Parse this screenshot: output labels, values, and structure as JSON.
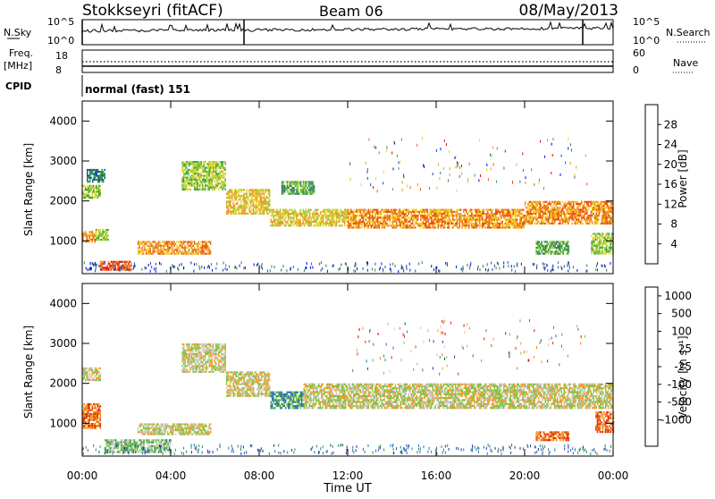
{
  "header": {
    "station": "Stokkseyri (fitACF)",
    "beam": "Beam 06",
    "date": "08/May/2013"
  },
  "top_panels": {
    "nsky_label": "N.Sky",
    "nsky_ticks": [
      "10^5",
      "10^0"
    ],
    "nsearch_label": "N.Search",
    "nsearch_ticks": [
      "10^5",
      "10^0"
    ],
    "freq_label": "Freq.",
    "freq_unit": "[MHz]",
    "freq_ticks": [
      "18",
      "8"
    ],
    "nave_label": "Nave",
    "nave_ticks": [
      "60",
      "0"
    ],
    "cpid_label": "CPID",
    "cpid_value": "normal (fast) 151"
  },
  "colors": {
    "power": [
      "#0000ff",
      "#1a4aa0",
      "#2f7a5a",
      "#2ea83c",
      "#9ccf2a",
      "#f0d020",
      "#f09020",
      "#f05010",
      "#e00000"
    ],
    "velocity": [
      "#1a3aa0",
      "#1e6fb8",
      "#2f8a5a",
      "#7ac43a",
      "#c8c8c0",
      "#f0a030",
      "#f07010",
      "#e02000",
      "#e00000"
    ]
  },
  "chart_data": [
    {
      "type": "heatmap",
      "name": "power",
      "ylabel": "Slant Range [km]",
      "ylim": [
        180,
        4500
      ],
      "y_ticks": [
        1000,
        2000,
        3000,
        4000
      ],
      "xlim": [
        0,
        24
      ],
      "colorbar_label": "Power [dB]",
      "colorbar_ticks": [
        "28",
        "24",
        "20",
        "16",
        "12",
        "8",
        "4"
      ],
      "bands": [
        {
          "x": [
            0.0,
            0.6
          ],
          "y": [
            1000,
            1250
          ],
          "level": 6
        },
        {
          "x": [
            0.6,
            1.2
          ],
          "y": [
            1050,
            1300
          ],
          "level": 4
        },
        {
          "x": [
            0.0,
            0.8
          ],
          "y": [
            2100,
            2400
          ],
          "level": 4
        },
        {
          "x": [
            0.2,
            1.0
          ],
          "y": [
            2500,
            2800
          ],
          "level": 2
        },
        {
          "x": [
            0.8,
            2.2
          ],
          "y": [
            300,
            500
          ],
          "level": 7
        },
        {
          "x": [
            2.5,
            5.8
          ],
          "y": [
            700,
            1000
          ],
          "level": 6
        },
        {
          "x": [
            4.5,
            6.5
          ],
          "y": [
            2300,
            3000
          ],
          "level": 4
        },
        {
          "x": [
            6.5,
            8.5
          ],
          "y": [
            1700,
            2300
          ],
          "level": 5
        },
        {
          "x": [
            8.5,
            12.0
          ],
          "y": [
            1400,
            1800
          ],
          "level": 5
        },
        {
          "x": [
            9.0,
            10.5
          ],
          "y": [
            2200,
            2500
          ],
          "level": 3
        },
        {
          "x": [
            12.0,
            20.0
          ],
          "y": [
            1350,
            1800
          ],
          "level": 6
        },
        {
          "x": [
            20.0,
            24.0
          ],
          "y": [
            1450,
            2000
          ],
          "level": 6
        },
        {
          "x": [
            20.5,
            22.0
          ],
          "y": [
            700,
            1000
          ],
          "level": 3
        },
        {
          "x": [
            23.0,
            24.0
          ],
          "y": [
            700,
            1200
          ],
          "level": 4
        }
      ]
    },
    {
      "type": "heatmap",
      "name": "velocity",
      "ylabel": "Slant Range [km]",
      "xlabel": "Time UT",
      "ylim": [
        180,
        4500
      ],
      "y_ticks": [
        1000,
        2000,
        3000,
        4000
      ],
      "xlim": [
        0,
        24
      ],
      "x_tick_labels": [
        "00:00",
        "04:00",
        "08:00",
        "12:00",
        "16:00",
        "20:00",
        "00:00"
      ],
      "colorbar_label": "Velocity [m s⁻¹]",
      "colorbar_ticks": [
        "1000",
        "500",
        "100",
        "25",
        "-25",
        "-100",
        "-500",
        "-1000"
      ],
      "bands": [
        {
          "x": [
            0.0,
            0.8
          ],
          "y": [
            900,
            1500
          ],
          "level": 6
        },
        {
          "x": [
            0.0,
            0.8
          ],
          "y": [
            2100,
            2400
          ],
          "level": 4
        },
        {
          "x": [
            1.0,
            4.0
          ],
          "y": [
            300,
            600
          ],
          "level": 3
        },
        {
          "x": [
            2.5,
            5.8
          ],
          "y": [
            750,
            1000
          ],
          "level": 4
        },
        {
          "x": [
            4.5,
            6.5
          ],
          "y": [
            2300,
            3000
          ],
          "level": 4
        },
        {
          "x": [
            6.5,
            8.5
          ],
          "y": [
            1700,
            2300
          ],
          "level": 4
        },
        {
          "x": [
            8.5,
            10.0
          ],
          "y": [
            1400,
            1800
          ],
          "level": 2
        },
        {
          "x": [
            10.0,
            24.0
          ],
          "y": [
            1400,
            2000
          ],
          "level": 4
        },
        {
          "x": [
            20.5,
            22.0
          ],
          "y": [
            600,
            800
          ],
          "level": 6
        },
        {
          "x": [
            23.2,
            24.0
          ],
          "y": [
            800,
            1300
          ],
          "level": 6
        }
      ]
    }
  ]
}
